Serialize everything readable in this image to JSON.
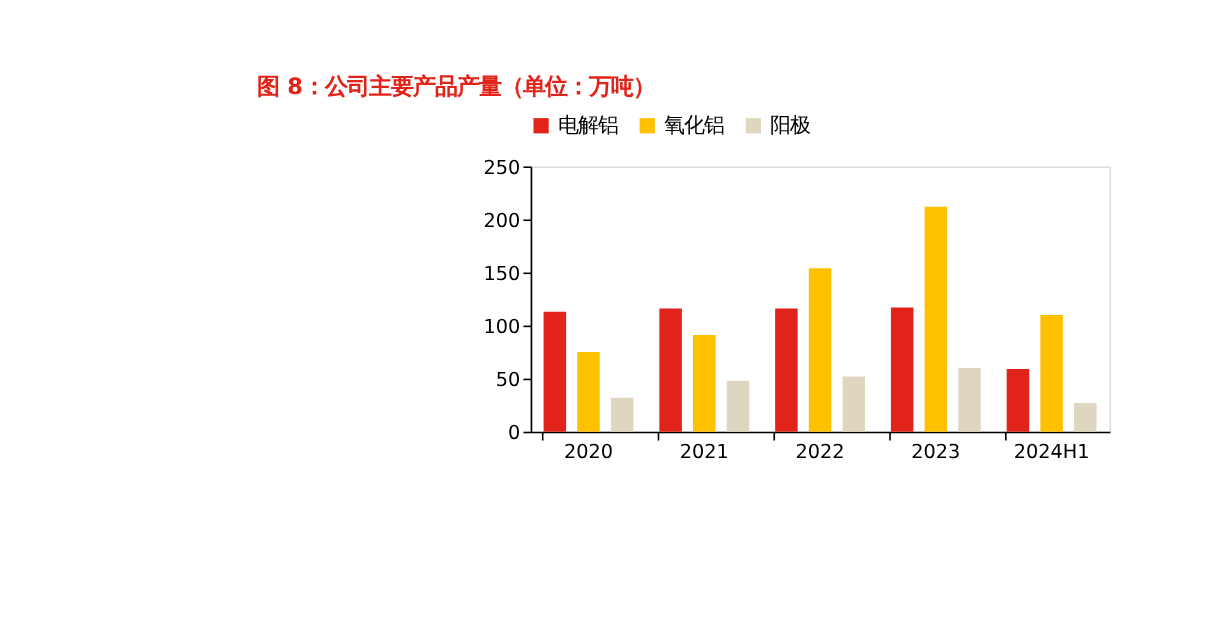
{
  "chart_data": {
    "type": "bar",
    "title": "图 8：公司主要产品产量（单位：万吨）",
    "categories": [
      "2020",
      "2021",
      "2022",
      "2023",
      "2024H1"
    ],
    "series": [
      {
        "name": "电解铝",
        "color": "#e2231a",
        "values": [
          113,
          116,
          116,
          117,
          59
        ]
      },
      {
        "name": "氧化铝",
        "color": "#ffc000",
        "values": [
          75,
          91,
          154,
          212,
          110
        ]
      },
      {
        "name": "阳极",
        "color": "#ded6bf",
        "values": [
          32,
          48,
          52,
          60,
          27
        ]
      }
    ],
    "ylim": [
      0,
      250
    ],
    "yticks": [
      0,
      50,
      100,
      150,
      200,
      250
    ],
    "grid": false,
    "legend": "top"
  }
}
